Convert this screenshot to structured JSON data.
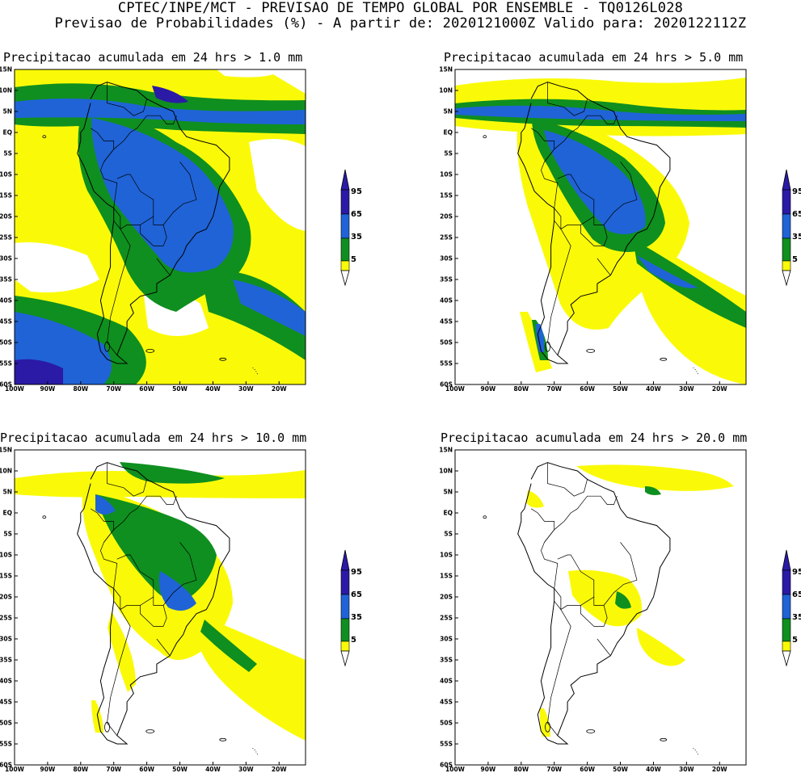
{
  "header": {
    "line1": "CPTEC/INPE/MCT - PREVISAO DE TEMPO GLOBAL POR ENSEMBLE - TQ0126L028",
    "line2": "Previsao de Probabilidades (%) -  A partir de: 2020121000Z  Valido para: 2020122112Z"
  },
  "lat_labels": [
    "15N",
    "10N",
    "5N",
    "EQ",
    "5S",
    "10S",
    "15S",
    "20S",
    "25S",
    "30S",
    "35S",
    "40S",
    "45S",
    "50S",
    "55S",
    "60S"
  ],
  "lon_labels": [
    "100W",
    "90W",
    "80W",
    "70W",
    "60W",
    "50W",
    "40W",
    "30W",
    "20W"
  ],
  "colorbar": {
    "labels": [
      "95",
      "65",
      "35",
      "5"
    ],
    "colors": {
      "c95": "#2b1aa6",
      "c65": "#1f63d6",
      "c35": "#0f8f1f",
      "c5": "#fafa08"
    }
  },
  "panels": [
    {
      "id": "p1",
      "title": "Precipitacao acumulada em 24 hrs > 1.0 mm"
    },
    {
      "id": "p2",
      "title": "Precipitacao acumulada em 24 hrs > 5.0 mm"
    },
    {
      "id": "p3",
      "title": "Precipitacao acumulada em 24 hrs > 10.0 mm"
    },
    {
      "id": "p4",
      "title": "Precipitacao acumulada em 24 hrs > 20.0 mm"
    }
  ]
}
